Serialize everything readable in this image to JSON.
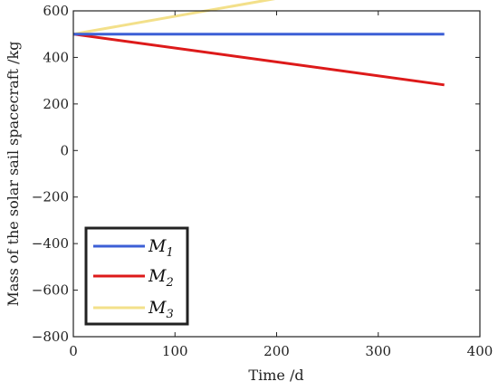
{
  "chart_data": {
    "type": "line",
    "title": "",
    "xlabel": "Time /d",
    "ylabel": "Mass of the solar sail spacecraft /kg",
    "xlim": [
      0,
      400
    ],
    "ylim": [
      -800,
      600
    ],
    "xticks": [
      0,
      100,
      200,
      300,
      400
    ],
    "yticks": [
      -800,
      -600,
      -400,
      -200,
      0,
      200,
      400,
      600
    ],
    "xtick_labels": [
      "0",
      "100",
      "200",
      "300",
      "400"
    ],
    "ytick_labels": [
      "−800",
      "−600",
      "−400",
      "−200",
      "0",
      "200",
      "400",
      "600"
    ],
    "grid": false,
    "legend_position": "bottom-left",
    "series": [
      {
        "name": "M",
        "subscript": "1",
        "color": "#3c5fd6",
        "x": [
          0,
          365
        ],
        "y": [
          500,
          500
        ]
      },
      {
        "name": "M",
        "subscript": "2",
        "color": "#dd1a1a",
        "x": [
          0,
          365
        ],
        "y": [
          500,
          282
        ]
      },
      {
        "name": "M",
        "subscript": "3",
        "color": "#f3e08a",
        "x": [
          0,
          365
        ],
        "y": [
          500,
          780
        ]
      }
    ]
  }
}
